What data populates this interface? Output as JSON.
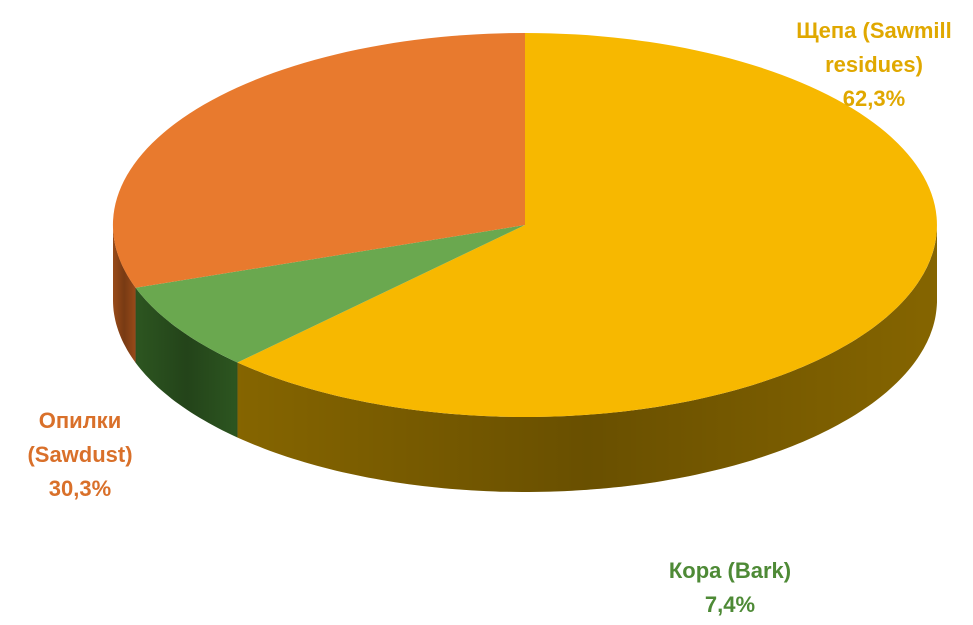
{
  "chart_data": {
    "type": "pie",
    "title": "",
    "slices": [
      {
        "key": "shchepa",
        "label_lines": [
          "Щепа (Sawmill",
          "residues)"
        ],
        "value": 62.3,
        "value_label": "62,3%",
        "color": "#F7B800",
        "side_color": "#8C6A00"
      },
      {
        "key": "kora",
        "label_lines": [
          "Кора (Bark)"
        ],
        "value": 7.4,
        "value_label": "7,4%",
        "color": "#6AA84F",
        "side_color": "#2F5A22"
      },
      {
        "key": "opilki",
        "label_lines": [
          "Опилки",
          "(Sawdust)"
        ],
        "value": 30.3,
        "value_label": "30,3%",
        "color": "#E87A2E",
        "side_color": "#A04E1A"
      }
    ],
    "label_colors": {
      "shchepa": "#E0A800",
      "kora": "#4E8A36",
      "opilki": "#D9702A"
    },
    "legend": "none"
  }
}
